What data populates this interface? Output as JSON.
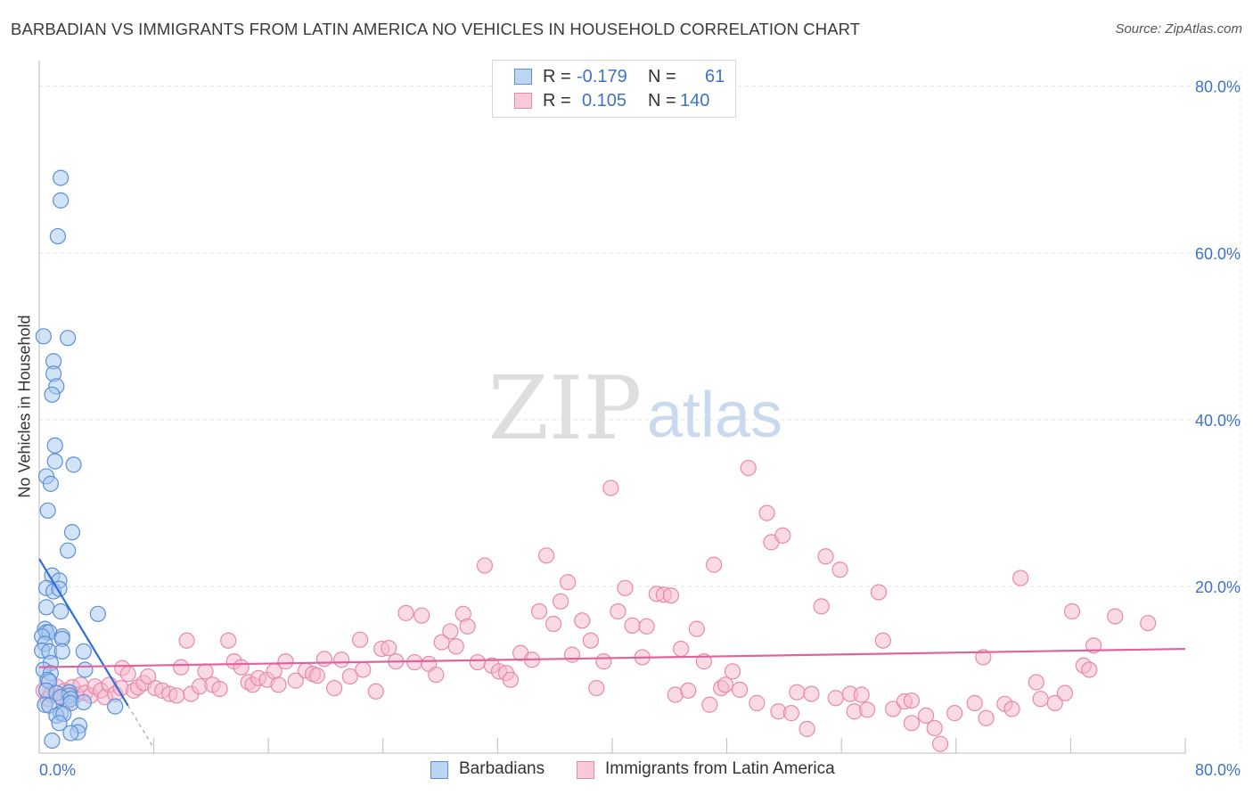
{
  "title": "BARBADIAN VS IMMIGRANTS FROM LATIN AMERICA NO VEHICLES IN HOUSEHOLD CORRELATION CHART",
  "source": "Source: ZipAtlas.com",
  "watermark": {
    "zip": "ZIP",
    "atlas": "atlas"
  },
  "legend_stats": [
    {
      "r_label": "R =",
      "r_value": "-0.179",
      "n_label": "N =",
      "n_value": "61"
    },
    {
      "r_label": "R =",
      "r_value": "0.105",
      "n_label": "N =",
      "n_value": "140"
    }
  ],
  "colors": {
    "blue_fill": "#a8c8f0",
    "blue_stroke": "#5b8fd6",
    "blue_line": "#2f6ed8",
    "pink_fill": "#f5b8cb",
    "pink_stroke": "#e889a8",
    "pink_line": "#e0649a",
    "axis_text": "#3d73c9",
    "grid": "#e4e4e4"
  },
  "chart_data": {
    "type": "scatter",
    "title": "BARBADIAN VS IMMIGRANTS FROM LATIN AMERICA NO VEHICLES IN HOUSEHOLD CORRELATION CHART",
    "xlabel": "",
    "ylabel": "No Vehicles in Household",
    "xlim": [
      0,
      80
    ],
    "ylim": [
      0,
      82
    ],
    "x_tick_labels": [
      "0.0%",
      "80.0%"
    ],
    "y_ticks": [
      20,
      40,
      60,
      80
    ],
    "y_tick_labels": [
      "20.0%",
      "40.0%",
      "60.0%",
      "80.0%"
    ],
    "legend": [
      "Barbadians",
      "Immigrants from Latin America"
    ],
    "series": [
      {
        "name": "Barbadians",
        "r": -0.179,
        "n": 61,
        "trend": {
          "x0": 0,
          "y0": 23.3,
          "x1": 6.2,
          "y1": 5.7,
          "dash_to_x": 8.0
        },
        "points": [
          [
            1.5,
            69.0
          ],
          [
            1.5,
            66.3
          ],
          [
            1.3,
            62.0
          ],
          [
            0.3,
            50.0
          ],
          [
            2.0,
            49.8
          ],
          [
            1.0,
            47.0
          ],
          [
            1.0,
            45.5
          ],
          [
            1.2,
            44.0
          ],
          [
            0.9,
            43.0
          ],
          [
            1.1,
            36.9
          ],
          [
            1.1,
            35.0
          ],
          [
            2.4,
            34.6
          ],
          [
            0.5,
            33.2
          ],
          [
            0.8,
            32.3
          ],
          [
            0.6,
            29.1
          ],
          [
            2.3,
            26.5
          ],
          [
            2.0,
            24.3
          ],
          [
            0.9,
            21.3
          ],
          [
            1.4,
            20.7
          ],
          [
            0.5,
            19.8
          ],
          [
            1.0,
            19.4
          ],
          [
            1.4,
            19.7
          ],
          [
            0.5,
            17.5
          ],
          [
            1.5,
            17.0
          ],
          [
            4.1,
            16.7
          ],
          [
            0.4,
            14.9
          ],
          [
            0.5,
            14.5
          ],
          [
            0.7,
            14.5
          ],
          [
            0.2,
            14.0
          ],
          [
            1.6,
            14.0
          ],
          [
            1.6,
            13.7
          ],
          [
            0.4,
            13.1
          ],
          [
            0.2,
            12.3
          ],
          [
            0.7,
            12.2
          ],
          [
            1.6,
            12.2
          ],
          [
            3.1,
            12.2
          ],
          [
            0.8,
            10.8
          ],
          [
            0.3,
            10.0
          ],
          [
            0.8,
            9.6
          ],
          [
            3.2,
            10.0
          ],
          [
            0.6,
            8.8
          ],
          [
            0.7,
            8.6
          ],
          [
            0.5,
            7.5
          ],
          [
            1.2,
            7.2
          ],
          [
            2.1,
            7.3
          ],
          [
            2.1,
            6.9
          ],
          [
            1.5,
            6.7
          ],
          [
            2.2,
            6.5
          ],
          [
            2.2,
            6.0
          ],
          [
            3.1,
            6.1
          ],
          [
            0.4,
            5.8
          ],
          [
            0.7,
            5.7
          ],
          [
            5.3,
            5.6
          ],
          [
            1.5,
            4.8
          ],
          [
            1.2,
            4.5
          ],
          [
            1.7,
            4.7
          ],
          [
            1.4,
            3.6
          ],
          [
            2.8,
            3.3
          ],
          [
            2.7,
            2.5
          ],
          [
            2.2,
            2.4
          ],
          [
            0.9,
            1.5
          ]
        ]
      },
      {
        "name": "Immigrants from Latin America",
        "r": 0.105,
        "n": 140,
        "trend": {
          "x0": 0,
          "y0": 10.3,
          "x1": 80,
          "y1": 12.5
        },
        "points": [
          [
            0.3,
            7.5
          ],
          [
            0.6,
            6.5
          ],
          [
            0.8,
            7.0
          ],
          [
            1.2,
            8.0
          ],
          [
            1.5,
            6.8
          ],
          [
            1.8,
            7.5
          ],
          [
            2.0,
            6.2
          ],
          [
            2.3,
            7.9
          ],
          [
            2.6,
            7.0
          ],
          [
            2.9,
            8.2
          ],
          [
            3.2,
            7.2
          ],
          [
            3.6,
            6.9
          ],
          [
            3.9,
            8.0
          ],
          [
            4.3,
            7.5
          ],
          [
            4.6,
            6.7
          ],
          [
            4.9,
            8.2
          ],
          [
            5.3,
            7.1
          ],
          [
            5.7,
            7.8
          ],
          [
            5.8,
            10.2
          ],
          [
            6.2,
            9.5
          ],
          [
            6.6,
            7.5
          ],
          [
            6.9,
            7.9
          ],
          [
            7.3,
            8.4
          ],
          [
            7.6,
            9.2
          ],
          [
            8.1,
            7.8
          ],
          [
            8.6,
            7.5
          ],
          [
            9.1,
            7.1
          ],
          [
            9.6,
            6.9
          ],
          [
            9.9,
            10.3
          ],
          [
            10.3,
            13.5
          ],
          [
            10.6,
            7.1
          ],
          [
            11.2,
            8.0
          ],
          [
            11.6,
            9.8
          ],
          [
            12.1,
            8.2
          ],
          [
            12.6,
            7.7
          ],
          [
            13.2,
            13.5
          ],
          [
            13.6,
            11.0
          ],
          [
            14.1,
            10.3
          ],
          [
            14.6,
            8.5
          ],
          [
            14.9,
            8.2
          ],
          [
            15.3,
            9.0
          ],
          [
            15.9,
            8.8
          ],
          [
            16.4,
            9.8
          ],
          [
            16.7,
            8.2
          ],
          [
            17.2,
            11.0
          ],
          [
            17.9,
            8.7
          ],
          [
            18.6,
            9.9
          ],
          [
            19.1,
            9.5
          ],
          [
            19.4,
            9.3
          ],
          [
            19.9,
            11.3
          ],
          [
            20.6,
            7.8
          ],
          [
            21.1,
            11.2
          ],
          [
            21.7,
            9.2
          ],
          [
            22.4,
            13.6
          ],
          [
            22.6,
            10.0
          ],
          [
            23.5,
            7.4
          ],
          [
            23.9,
            12.5
          ],
          [
            24.4,
            12.6
          ],
          [
            24.9,
            11.0
          ],
          [
            25.6,
            16.8
          ],
          [
            26.2,
            10.9
          ],
          [
            26.7,
            16.5
          ],
          [
            27.2,
            10.7
          ],
          [
            27.7,
            9.4
          ],
          [
            28.1,
            13.3
          ],
          [
            28.7,
            14.6
          ],
          [
            29.1,
            12.8
          ],
          [
            29.6,
            16.7
          ],
          [
            29.9,
            15.2
          ],
          [
            30.6,
            10.9
          ],
          [
            31.1,
            22.5
          ],
          [
            31.6,
            10.5
          ],
          [
            32.1,
            9.8
          ],
          [
            32.6,
            9.6
          ],
          [
            32.9,
            8.8
          ],
          [
            33.6,
            12.0
          ],
          [
            34.4,
            11.2
          ],
          [
            34.9,
            17.0
          ],
          [
            35.4,
            23.7
          ],
          [
            35.9,
            15.5
          ],
          [
            36.4,
            18.2
          ],
          [
            36.9,
            20.5
          ],
          [
            37.2,
            11.8
          ],
          [
            37.9,
            15.9
          ],
          [
            38.5,
            13.5
          ],
          [
            38.9,
            7.8
          ],
          [
            39.4,
            11.0
          ],
          [
            39.9,
            31.8
          ],
          [
            40.4,
            17.0
          ],
          [
            40.9,
            19.8
          ],
          [
            41.4,
            15.3
          ],
          [
            42.1,
            11.5
          ],
          [
            42.4,
            15.2
          ],
          [
            43.1,
            19.1
          ],
          [
            43.6,
            19.0
          ],
          [
            44.1,
            18.9
          ],
          [
            44.4,
            7.0
          ],
          [
            44.8,
            12.5
          ],
          [
            45.3,
            7.5
          ],
          [
            45.9,
            14.9
          ],
          [
            46.4,
            11.0
          ],
          [
            46.8,
            5.8
          ],
          [
            47.1,
            22.6
          ],
          [
            47.6,
            7.8
          ],
          [
            47.9,
            8.2
          ],
          [
            48.4,
            9.8
          ],
          [
            48.9,
            7.6
          ],
          [
            49.5,
            34.2
          ],
          [
            50.1,
            6.0
          ],
          [
            50.8,
            28.8
          ],
          [
            51.1,
            25.3
          ],
          [
            51.6,
            5.0
          ],
          [
            51.9,
            26.1
          ],
          [
            52.5,
            4.8
          ],
          [
            52.9,
            7.3
          ],
          [
            53.6,
            2.9
          ],
          [
            53.9,
            7.1
          ],
          [
            54.6,
            17.6
          ],
          [
            54.9,
            23.6
          ],
          [
            55.6,
            6.6
          ],
          [
            55.9,
            22.0
          ],
          [
            56.6,
            7.1
          ],
          [
            56.9,
            5.0
          ],
          [
            57.4,
            7.0
          ],
          [
            57.8,
            5.2
          ],
          [
            58.6,
            19.3
          ],
          [
            58.9,
            13.5
          ],
          [
            59.6,
            5.3
          ],
          [
            60.4,
            6.2
          ],
          [
            60.9,
            3.6
          ],
          [
            60.9,
            6.3
          ],
          [
            61.9,
            4.5
          ],
          [
            62.5,
            3.0
          ],
          [
            62.9,
            1.1
          ],
          [
            63.9,
            4.8
          ],
          [
            65.3,
            6.0
          ],
          [
            65.9,
            11.5
          ],
          [
            66.1,
            4.2
          ],
          [
            67.4,
            5.9
          ],
          [
            67.9,
            5.3
          ],
          [
            68.5,
            21.0
          ],
          [
            69.6,
            8.5
          ],
          [
            69.9,
            6.5
          ],
          [
            70.9,
            6.0
          ],
          [
            71.6,
            7.2
          ],
          [
            72.1,
            17.0
          ],
          [
            72.9,
            10.5
          ],
          [
            73.3,
            10.0
          ],
          [
            73.6,
            12.9
          ],
          [
            75.1,
            16.4
          ],
          [
            77.4,
            15.6
          ]
        ]
      }
    ]
  }
}
